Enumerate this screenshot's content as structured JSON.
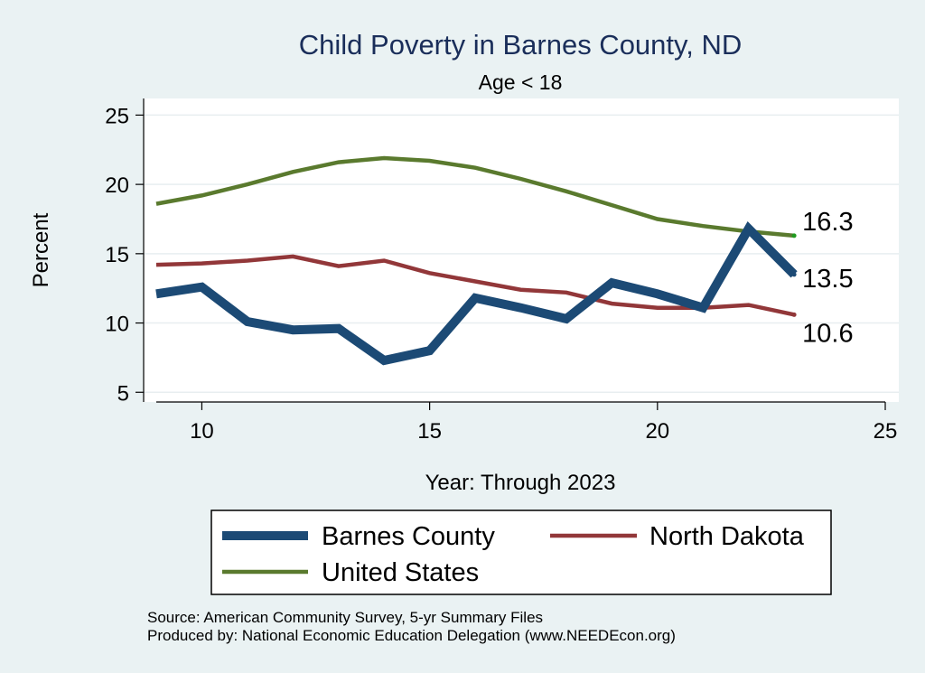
{
  "chart_data": {
    "type": "line",
    "title": "Child Poverty in Barnes County, ND",
    "subtitle": "Age < 18",
    "xlabel": "Year: Through 2023",
    "ylabel": "Percent",
    "xlim": [
      9,
      25
    ],
    "ylim": [
      4.3,
      26.2
    ],
    "xticks": [
      10,
      15,
      20,
      25
    ],
    "yticks": [
      5,
      10,
      15,
      20,
      25
    ],
    "grid": true,
    "legend_position": "bottom",
    "x": [
      9,
      10,
      11,
      12,
      13,
      14,
      15,
      16,
      17,
      18,
      19,
      20,
      21,
      22,
      23
    ],
    "series": [
      {
        "name": "Barnes County",
        "color": "#1c4a75",
        "width": 10,
        "values": [
          12.1,
          12.6,
          10.1,
          9.5,
          9.6,
          7.3,
          8.0,
          11.8,
          11.1,
          10.3,
          12.9,
          12.1,
          11.1,
          16.8,
          13.5
        ],
        "end_label": "13.5"
      },
      {
        "name": "North Dakota",
        "color": "#923739",
        "width": 4.5,
        "values": [
          14.2,
          14.3,
          14.5,
          14.8,
          14.1,
          14.5,
          13.6,
          13.0,
          12.4,
          12.2,
          11.4,
          11.1,
          11.1,
          11.3,
          10.6
        ],
        "end_label": "10.6"
      },
      {
        "name": "United States",
        "color": "#5a7a2e",
        "width": 4.5,
        "values": [
          18.6,
          19.2,
          20.0,
          20.9,
          21.6,
          21.9,
          21.7,
          21.2,
          20.4,
          19.5,
          18.5,
          17.5,
          17.0,
          16.6,
          16.3
        ],
        "end_label": "16.3"
      }
    ]
  },
  "notes": {
    "source": "Source: American Community Survey, 5-yr Summary Files",
    "produced_by": "Produced by: National Economic Education Delegation (www.NEEDEcon.org)"
  }
}
